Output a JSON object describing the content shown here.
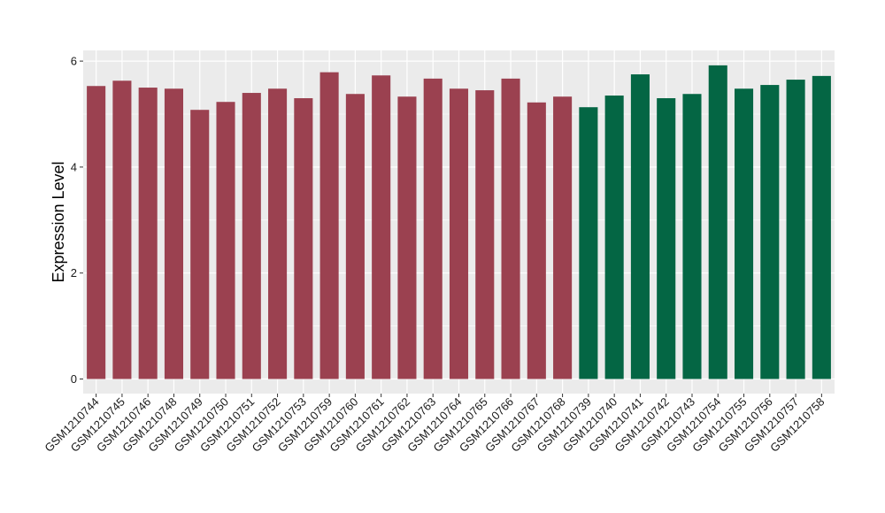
{
  "chart_data": {
    "type": "bar",
    "title": "",
    "xlabel": "",
    "ylabel": "Expression Level",
    "ylim": [
      0,
      6.25
    ],
    "yticks": [
      0,
      2,
      4,
      6
    ],
    "grid": true,
    "panel_background": "#ebebeb",
    "grid_color": "#ffffff",
    "categories": [
      "GSM1210744",
      "GSM1210745",
      "GSM1210746",
      "GSM1210748",
      "GSM1210749",
      "GSM1210750",
      "GSM1210751",
      "GSM1210752",
      "GSM1210753",
      "GSM1210759",
      "GSM1210760",
      "GSM1210761",
      "GSM1210762",
      "GSM1210763",
      "GSM1210764",
      "GSM1210765",
      "GSM1210766",
      "GSM1210767",
      "GSM1210768",
      "GSM1210739",
      "GSM1210740",
      "GSM1210741",
      "GSM1210742",
      "GSM1210743",
      "GSM1210754",
      "GSM1210755",
      "GSM1210756",
      "GSM1210757",
      "GSM1210758"
    ],
    "values": [
      5.53,
      5.63,
      5.5,
      5.48,
      5.08,
      5.23,
      5.4,
      5.48,
      5.3,
      5.79,
      5.38,
      5.73,
      5.33,
      5.67,
      5.48,
      5.45,
      5.67,
      5.22,
      5.33,
      5.13,
      5.35,
      5.75,
      5.3,
      5.38,
      5.92,
      5.48,
      5.55,
      5.65,
      5.72
    ],
    "groups": [
      "a",
      "a",
      "a",
      "a",
      "a",
      "a",
      "a",
      "a",
      "a",
      "a",
      "a",
      "a",
      "a",
      "a",
      "a",
      "a",
      "a",
      "a",
      "a",
      "b",
      "b",
      "b",
      "b",
      "b",
      "b",
      "b",
      "b",
      "b",
      "b"
    ],
    "colors": {
      "a": "#9b4150",
      "b": "#046644"
    }
  }
}
